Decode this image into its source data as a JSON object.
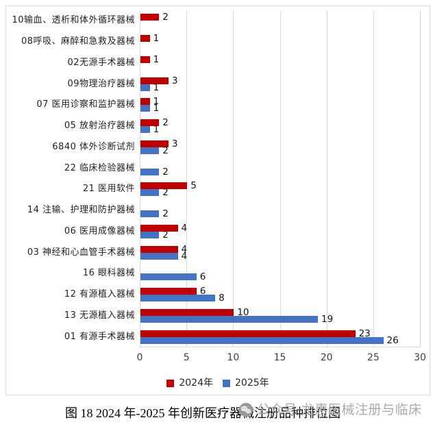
{
  "page": {
    "caption": "图 18 2024 年-2025 年创新医疗器械注册品种排位图",
    "watermark": {
      "icon": "wechat-icon",
      "text": "公众号·龙惠医械注册与临床"
    }
  },
  "chart_data": {
    "type": "bar",
    "orientation": "horizontal",
    "title": "",
    "xlabel": "",
    "ylabel": "",
    "categories": [
      "10输血、透析和体外循环器械",
      "08呼吸、麻醉和急救及器械",
      "02无源手术器械",
      "09物理治疗器械",
      "07 医用诊察和监护器械",
      "05 放射治疗器械",
      "6840 体外诊断试剂",
      "22 临床检验器械",
      "21 医用软件",
      "14 注输、护理和防护器械",
      "06 医用成像器械",
      "03 神经和心血管手术器械",
      "16 眼科器械",
      "12 有源植入器械",
      "13 无源植入器械",
      "01 有源手术器械"
    ],
    "series": [
      {
        "name": "2024年",
        "color": "#C00000",
        "values": [
          2,
          1,
          1,
          3,
          1,
          2,
          3,
          0,
          5,
          0,
          4,
          4,
          0,
          6,
          10,
          23
        ]
      },
      {
        "name": "2025年",
        "color": "#4472C4",
        "values": [
          0,
          0,
          0,
          1,
          1,
          1,
          2,
          2,
          2,
          2,
          2,
          4,
          6,
          8,
          19,
          26
        ]
      }
    ],
    "xlim": [
      0,
      30
    ],
    "x_ticks": [
      0,
      5,
      10,
      15,
      20,
      25,
      30
    ],
    "grid": "vertical",
    "legend_position": "bottom",
    "value_labels": true,
    "note": "zero values are not drawn and have no data label"
  },
  "colors": {
    "grid": "#D9D9D9",
    "frame_border": "#D9D9D9",
    "axis_text": "#3F3F3F",
    "category_text": "#1F1F1F",
    "value_text": "#111111",
    "caption_text": "#000000",
    "watermark_text": "#ABABAB"
  }
}
